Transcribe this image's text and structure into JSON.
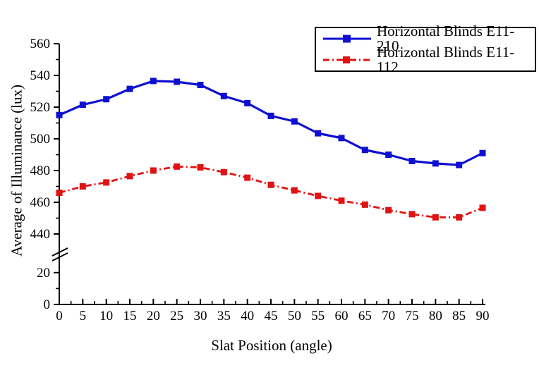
{
  "chart_data": {
    "type": "line",
    "title": "",
    "xlabel": "Slat Position (angle)",
    "ylabel": "Average of Illuminance (lux)",
    "x": [
      0,
      5,
      10,
      15,
      20,
      25,
      30,
      35,
      40,
      45,
      50,
      55,
      60,
      65,
      70,
      75,
      80,
      85,
      90
    ],
    "series": [
      {
        "name": "Horizontal Blinds E11-210",
        "color": "#0f0fd2",
        "line_style": "solid",
        "marker": "square",
        "values": [
          515,
          521.5,
          525,
          531.5,
          536.5,
          536,
          534,
          527,
          522.5,
          514.5,
          511,
          503.5,
          500.5,
          493,
          490,
          486,
          484.5,
          483.5,
          491
        ]
      },
      {
        "name": "Horizontal Blinds E11-112",
        "color": "#e01212",
        "line_style": "dash-dot",
        "marker": "square",
        "values": [
          466,
          470,
          472.5,
          476.5,
          480,
          482.5,
          482,
          479,
          475.5,
          471,
          467.5,
          464,
          461,
          458.5,
          455,
          452.5,
          450.5,
          450.5,
          456.5
        ]
      }
    ],
    "x_axis": {
      "min": 0,
      "max": 90,
      "major_ticks": [
        0,
        5,
        10,
        15,
        20,
        25,
        30,
        35,
        40,
        45,
        50,
        55,
        60,
        65,
        70,
        75,
        80,
        85,
        90
      ],
      "minor_step": 2.5
    },
    "y_axis": {
      "broken": true,
      "lower_segment": {
        "min": 0,
        "max": 20,
        "major_ticks": [
          0,
          20
        ],
        "minor_ticks": [
          10
        ]
      },
      "upper_segment": {
        "min": 440,
        "max": 560,
        "major_ticks": [
          440,
          460,
          480,
          500,
          520,
          540,
          560
        ],
        "minor_ticks": [
          450,
          470,
          490,
          510,
          530,
          550
        ]
      }
    },
    "legend": {
      "position": "top-right",
      "entries": [
        "Horizontal Blinds E11-210",
        "Horizontal Blinds E11-112"
      ]
    },
    "grid": false,
    "axis_color": "#000000",
    "background": "#ffffff"
  }
}
